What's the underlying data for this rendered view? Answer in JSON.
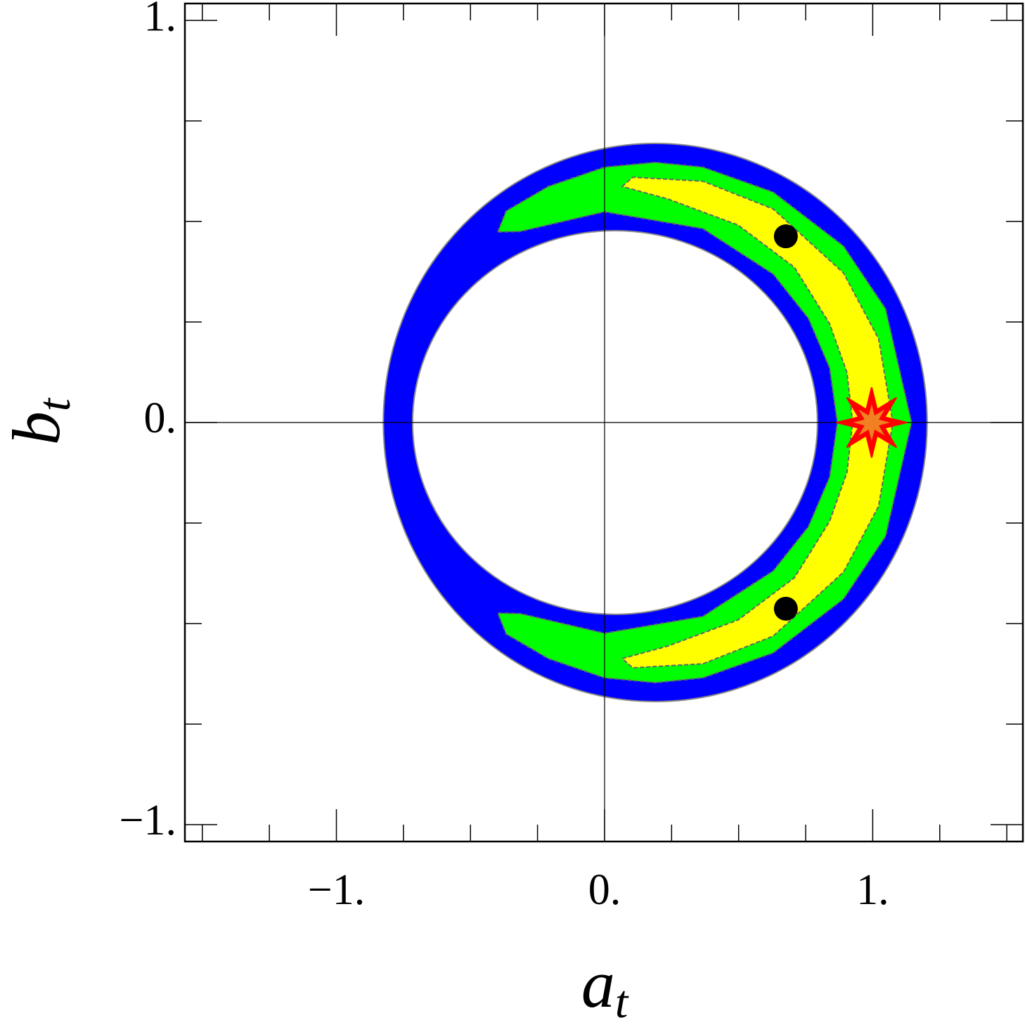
{
  "chart_data": {
    "type": "contour",
    "xlabel": {
      "main": "a",
      "sub": "t"
    },
    "ylabel": {
      "main": "b",
      "sub": "t"
    },
    "xlim": [
      -1.565,
      1.56
    ],
    "ylim": [
      -1.042,
      1.042
    ],
    "xticks": [
      {
        "value": -1,
        "label": "−1."
      },
      {
        "value": 0,
        "label": "0."
      },
      {
        "value": 1,
        "label": "1."
      }
    ],
    "yticks": [
      {
        "value": -1,
        "label": "−1."
      },
      {
        "value": 0,
        "label": "0."
      },
      {
        "value": 1,
        "label": "1."
      }
    ],
    "x_minor_ticks": [
      -1.5,
      -1.25,
      -0.75,
      -0.5,
      -0.25,
      0.25,
      0.5,
      0.75,
      1.25,
      1.5
    ],
    "y_minor_ticks": [
      -0.75,
      -0.5,
      -0.25,
      0.25,
      0.5,
      0.75
    ],
    "axes_lines": true,
    "regions": [
      {
        "shape": "ellipse",
        "color": "#0000ff",
        "cx": 0.189,
        "cy": 0,
        "rx": 1.014,
        "ry": 0.694
      },
      {
        "shape": "polygon",
        "color": "#00ff00",
        "x": [
          -0.398,
          -0.367,
          -0.21,
          0,
          0.189,
          0.367,
          0.629,
          0.891,
          1.048,
          1.145,
          1.048,
          0.891,
          0.629,
          0.367,
          0.189,
          0,
          -0.21,
          -0.367,
          -0.398,
          -0.315,
          0,
          0.367,
          0.629,
          0.76,
          0.839,
          0.868,
          0.839,
          0.76,
          0.629,
          0.367,
          0,
          -0.315
        ],
        "y": [
          0.474,
          0.526,
          0.587,
          0.635,
          0.647,
          0.635,
          0.573,
          0.439,
          0.283,
          0,
          -0.283,
          -0.439,
          -0.573,
          -0.635,
          -0.647,
          -0.635,
          -0.587,
          -0.526,
          -0.474,
          -0.475,
          -0.524,
          -0.482,
          -0.369,
          -0.259,
          -0.136,
          0,
          0.136,
          0.259,
          0.369,
          0.482,
          0.524,
          0.475
        ]
      },
      {
        "shape": "polygon",
        "color": "#ffff00",
        "x": [
          0.066,
          0.105,
          0.367,
          0.629,
          0.891,
          1.022,
          1.075,
          1.022,
          0.891,
          0.629,
          0.367,
          0.105,
          0.066,
          0.236,
          0.498,
          0.708,
          0.839,
          0.904,
          0.925,
          0.904,
          0.839,
          0.708,
          0.498,
          0.236
        ],
        "y": [
          0.587,
          0.61,
          0.6,
          0.531,
          0.372,
          0.208,
          0,
          -0.208,
          -0.372,
          -0.531,
          -0.6,
          -0.61,
          -0.587,
          -0.556,
          -0.491,
          -0.386,
          -0.246,
          -0.124,
          0,
          0.124,
          0.246,
          0.386,
          0.491,
          0.556
        ]
      },
      {
        "shape": "ellipse",
        "color": "#ffffff",
        "cx": 0.039,
        "cy": 0,
        "rx": 0.755,
        "ry": 0.477
      }
    ],
    "markers": [
      {
        "shape": "circle",
        "color": "#000000",
        "x": 0.676,
        "y": 0.463
      },
      {
        "shape": "circle",
        "color": "#000000",
        "x": 0.676,
        "y": -0.463
      },
      {
        "shape": "star",
        "color": "#ff0000",
        "inner_color": "#f08020",
        "x": 0.996,
        "y": 0
      }
    ]
  }
}
